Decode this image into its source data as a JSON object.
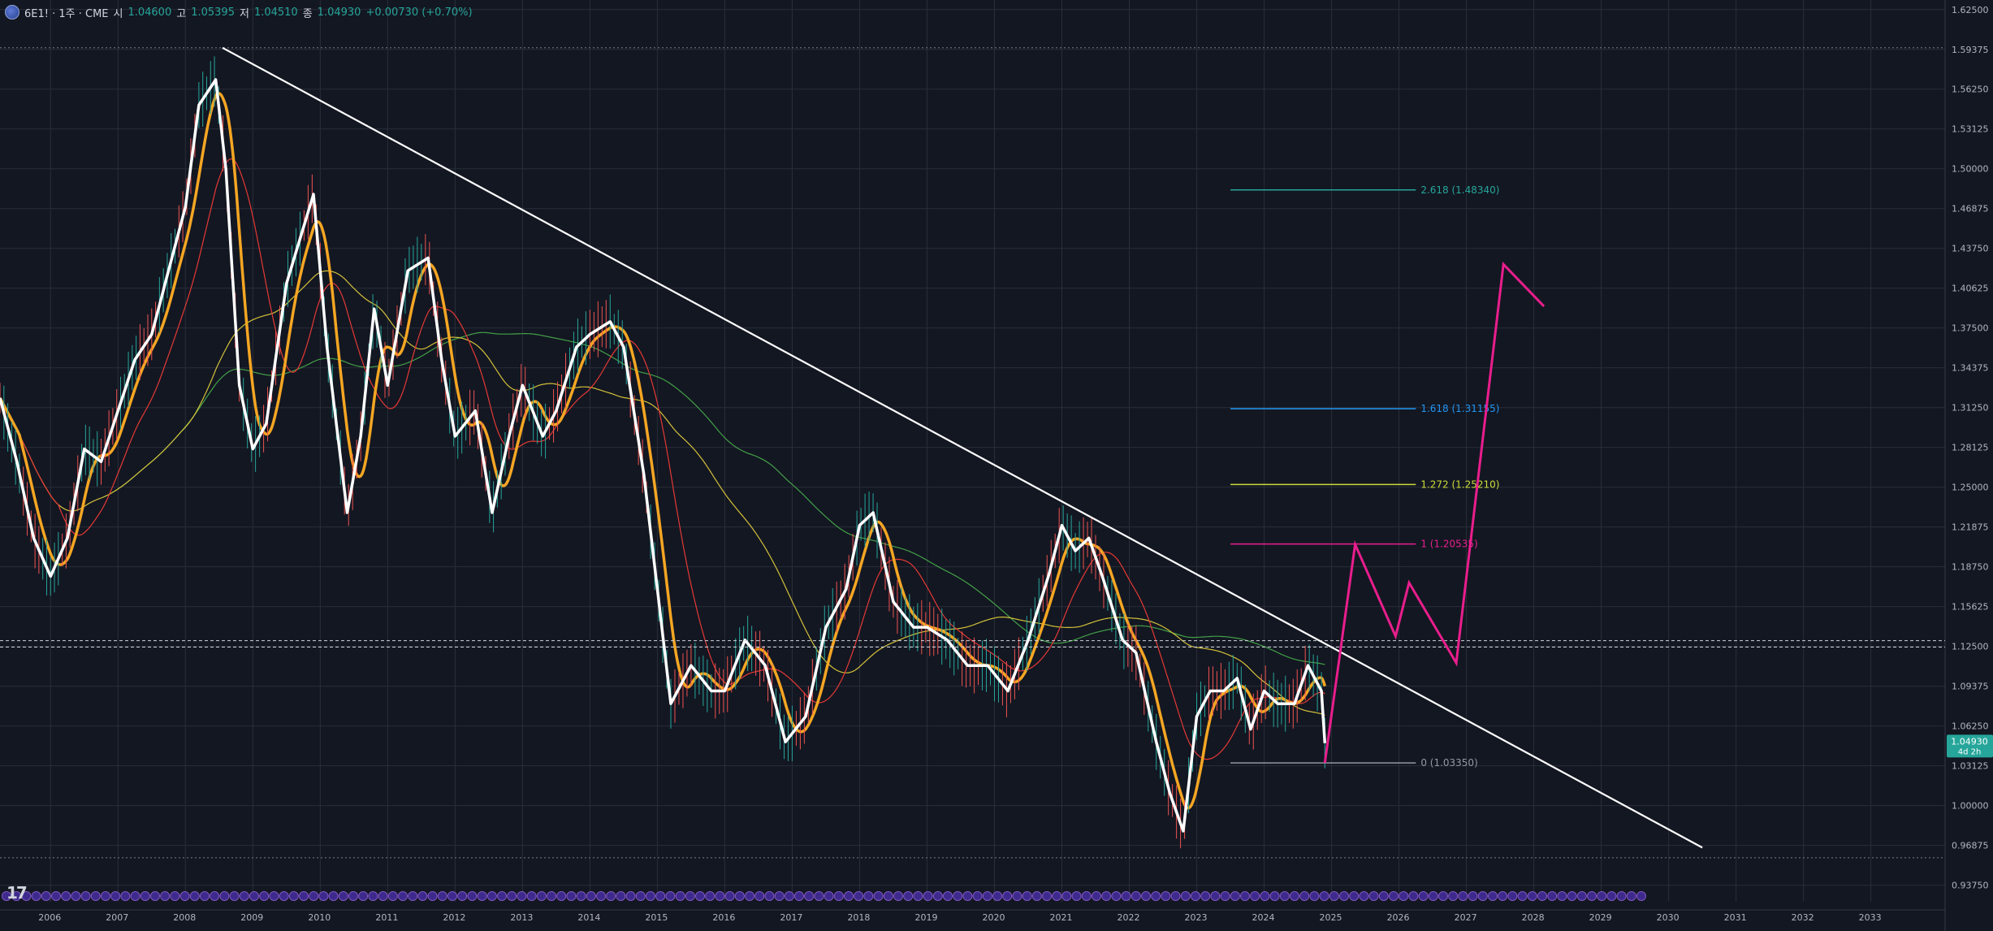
{
  "header": {
    "symbol": "6E1! · 1주 · CME",
    "open_label": "시",
    "open": "1.04600",
    "high_label": "고",
    "high": "1.05395",
    "low_label": "저",
    "low": "1.04510",
    "close_label": "종",
    "close": "1.04930",
    "change": "+0.00730 (+0.70%)"
  },
  "colors": {
    "background": "#131722",
    "grid": "#2a2e39",
    "price": "#ffffff",
    "ma_fast": "#f5a623",
    "ma_red": "#e53935",
    "ma_yellow": "#d4c13a",
    "ma_green": "#43a047",
    "trend": "#ffffff",
    "projection": "#e91e8c",
    "current_badge": "#26a69a"
  },
  "current_price": {
    "value": "1.04930",
    "countdown": "4d 2h"
  },
  "chart_data": {
    "type": "line",
    "title": "",
    "xlabel": "",
    "ylabel": "",
    "x_ticks": [
      "2006",
      "2007",
      "2008",
      "2009",
      "2010",
      "2011",
      "2012",
      "2013",
      "2014",
      "2015",
      "2016",
      "2017",
      "2018",
      "2019",
      "2020",
      "2021",
      "2022",
      "2023",
      "2024",
      "2025",
      "2026",
      "2027",
      "2028",
      "2029",
      "2030",
      "2031",
      "2032",
      "2033"
    ],
    "y_ticks": [
      "1.62500",
      "1.59375",
      "1.56250",
      "1.53125",
      "1.50000",
      "1.46875",
      "1.43750",
      "1.40625",
      "1.37500",
      "1.34375",
      "1.31250",
      "1.28125",
      "1.25000",
      "1.21875",
      "1.18750",
      "1.15625",
      "1.12500",
      "1.09375",
      "1.06250",
      "1.03125",
      "1.00000",
      "0.96875",
      "0.93750"
    ],
    "xlim": [
      2005.25,
      2034.1
    ],
    "ylim": [
      0.9245,
      1.6325
    ],
    "grid": true,
    "series": [
      {
        "values": [
          [
            2005.25,
            1.32
          ],
          [
            2005.5,
            1.27
          ],
          [
            2005.75,
            1.21
          ],
          [
            2006.0,
            1.18
          ],
          [
            2006.25,
            1.21
          ],
          [
            2006.5,
            1.28
          ],
          [
            2006.75,
            1.27
          ],
          [
            2007.0,
            1.31
          ],
          [
            2007.25,
            1.35
          ],
          [
            2007.5,
            1.37
          ],
          [
            2007.75,
            1.42
          ],
          [
            2008.0,
            1.47
          ],
          [
            2008.2,
            1.55
          ],
          [
            2008.45,
            1.57
          ],
          [
            2008.6,
            1.5
          ],
          [
            2008.8,
            1.33
          ],
          [
            2009.0,
            1.28
          ],
          [
            2009.2,
            1.3
          ],
          [
            2009.5,
            1.41
          ],
          [
            2009.9,
            1.48
          ],
          [
            2010.1,
            1.36
          ],
          [
            2010.4,
            1.23
          ],
          [
            2010.6,
            1.29
          ],
          [
            2010.8,
            1.39
          ],
          [
            2011.0,
            1.33
          ],
          [
            2011.3,
            1.42
          ],
          [
            2011.6,
            1.43
          ],
          [
            2011.8,
            1.35
          ],
          [
            2012.0,
            1.29
          ],
          [
            2012.3,
            1.31
          ],
          [
            2012.55,
            1.23
          ],
          [
            2012.8,
            1.29
          ],
          [
            2013.0,
            1.33
          ],
          [
            2013.3,
            1.29
          ],
          [
            2013.5,
            1.31
          ],
          [
            2013.8,
            1.36
          ],
          [
            2014.0,
            1.37
          ],
          [
            2014.3,
            1.38
          ],
          [
            2014.5,
            1.36
          ],
          [
            2014.8,
            1.26
          ],
          [
            2015.0,
            1.17
          ],
          [
            2015.2,
            1.08
          ],
          [
            2015.5,
            1.11
          ],
          [
            2015.8,
            1.09
          ],
          [
            2016.0,
            1.09
          ],
          [
            2016.3,
            1.13
          ],
          [
            2016.6,
            1.11
          ],
          [
            2016.9,
            1.05
          ],
          [
            2017.2,
            1.07
          ],
          [
            2017.5,
            1.14
          ],
          [
            2017.8,
            1.17
          ],
          [
            2018.0,
            1.22
          ],
          [
            2018.2,
            1.23
          ],
          [
            2018.5,
            1.16
          ],
          [
            2018.8,
            1.14
          ],
          [
            2019.0,
            1.14
          ],
          [
            2019.3,
            1.13
          ],
          [
            2019.6,
            1.11
          ],
          [
            2019.9,
            1.11
          ],
          [
            2020.2,
            1.09
          ],
          [
            2020.5,
            1.13
          ],
          [
            2020.8,
            1.18
          ],
          [
            2021.0,
            1.22
          ],
          [
            2021.2,
            1.2
          ],
          [
            2021.4,
            1.21
          ],
          [
            2021.6,
            1.18
          ],
          [
            2021.9,
            1.13
          ],
          [
            2022.1,
            1.12
          ],
          [
            2022.4,
            1.05
          ],
          [
            2022.6,
            1.01
          ],
          [
            2022.8,
            0.98
          ],
          [
            2023.0,
            1.07
          ],
          [
            2023.2,
            1.09
          ],
          [
            2023.4,
            1.09
          ],
          [
            2023.6,
            1.1
          ],
          [
            2023.8,
            1.06
          ],
          [
            2024.0,
            1.09
          ],
          [
            2024.2,
            1.08
          ],
          [
            2024.45,
            1.08
          ],
          [
            2024.65,
            1.11
          ],
          [
            2024.85,
            1.09
          ],
          [
            2024.9,
            1.049
          ]
        ]
      }
    ],
    "trendline": [
      [
        2008.55,
        1.595
      ],
      [
        2030.5,
        0.967
      ]
    ],
    "fib_levels": [
      {
        "label": "2.618 (1.48340)",
        "value": 1.4834,
        "color": "#26a69a"
      },
      {
        "label": "1.618 (1.31155)",
        "value": 1.31155,
        "color": "#2196f3"
      },
      {
        "label": "1.272 (1.25210)",
        "value": 1.2521,
        "color": "#cddc39"
      },
      {
        "label": "1 (1.20535)",
        "value": 1.20535,
        "color": "#e91e8c"
      },
      {
        "label": "0 (1.03350)",
        "value": 1.0335,
        "color": "#9598a1"
      }
    ],
    "fib_x": [
      2023.5,
      2026.25
    ],
    "projection_path": [
      [
        2024.9,
        1.0335
      ],
      [
        2025.35,
        1.205
      ],
      [
        2025.95,
        1.133
      ],
      [
        2026.15,
        1.175
      ],
      [
        2026.85,
        1.112
      ],
      [
        2027.55,
        1.425
      ],
      [
        2028.15,
        1.392
      ]
    ],
    "horizontal_dashed": [
      1.1245,
      1.1295
    ]
  }
}
